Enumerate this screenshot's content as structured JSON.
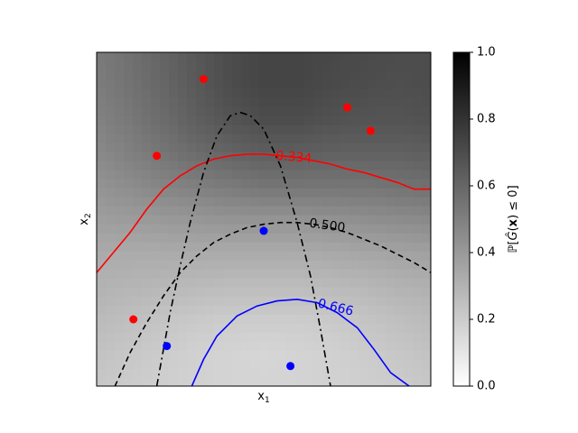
{
  "chart_data": {
    "type": "heatmap",
    "xlabel": "x1",
    "ylabel": "x2",
    "xlim": [
      0,
      1
    ],
    "ylim": [
      0,
      1
    ],
    "x_ticks_shown": false,
    "y_ticks_shown": false,
    "colormap": "gray_r",
    "colorbar": {
      "label": "ℙ[Ĝ(x) ≤ 0]",
      "range": [
        0,
        1
      ],
      "ticks": [
        "0.0",
        "0.2",
        "0.4",
        "0.6",
        "0.8",
        "1.0"
      ]
    },
    "probability_field": {
      "x": [
        0.0,
        0.1,
        0.2,
        0.3,
        0.4,
        0.5,
        0.6,
        0.7,
        0.8,
        0.9,
        1.0
      ],
      "y": [
        0.0,
        0.1,
        0.2,
        0.3,
        0.4,
        0.5,
        0.6,
        0.7,
        0.8,
        0.9,
        1.0
      ],
      "values_rows_by_y": [
        [
          0.22,
          0.2,
          0.19,
          0.18,
          0.17,
          0.17,
          0.17,
          0.18,
          0.19,
          0.2,
          0.22
        ],
        [
          0.24,
          0.22,
          0.2,
          0.18,
          0.17,
          0.16,
          0.17,
          0.18,
          0.2,
          0.22,
          0.24
        ],
        [
          0.27,
          0.25,
          0.23,
          0.21,
          0.2,
          0.2,
          0.2,
          0.21,
          0.23,
          0.25,
          0.27
        ],
        [
          0.3,
          0.29,
          0.28,
          0.27,
          0.26,
          0.26,
          0.26,
          0.27,
          0.28,
          0.3,
          0.31
        ],
        [
          0.33,
          0.33,
          0.33,
          0.33,
          0.33,
          0.33,
          0.33,
          0.34,
          0.35,
          0.36,
          0.37
        ],
        [
          0.38,
          0.39,
          0.4,
          0.41,
          0.42,
          0.42,
          0.42,
          0.43,
          0.44,
          0.45,
          0.46
        ],
        [
          0.42,
          0.45,
          0.48,
          0.5,
          0.52,
          0.54,
          0.54,
          0.54,
          0.54,
          0.55,
          0.56
        ],
        [
          0.46,
          0.5,
          0.54,
          0.58,
          0.61,
          0.63,
          0.63,
          0.62,
          0.62,
          0.62,
          0.63
        ],
        [
          0.49,
          0.53,
          0.58,
          0.63,
          0.67,
          0.7,
          0.7,
          0.68,
          0.67,
          0.67,
          0.68
        ],
        [
          0.51,
          0.55,
          0.6,
          0.65,
          0.7,
          0.73,
          0.73,
          0.71,
          0.7,
          0.69,
          0.7
        ],
        [
          0.52,
          0.56,
          0.61,
          0.66,
          0.7,
          0.73,
          0.73,
          0.72,
          0.71,
          0.7,
          0.7
        ]
      ]
    },
    "contours": [
      {
        "level_label": "0.334",
        "color": "#ff0000",
        "style": "solid",
        "label_at": [
          0.59,
          0.685
        ],
        "label_rotation": 5,
        "points": [
          [
            0.0,
            0.34
          ],
          [
            0.05,
            0.4
          ],
          [
            0.1,
            0.46
          ],
          [
            0.15,
            0.53
          ],
          [
            0.2,
            0.59
          ],
          [
            0.25,
            0.63
          ],
          [
            0.3,
            0.66
          ],
          [
            0.35,
            0.68
          ],
          [
            0.4,
            0.69
          ],
          [
            0.45,
            0.695
          ],
          [
            0.5,
            0.695
          ],
          [
            0.55,
            0.69
          ],
          [
            0.6,
            0.685
          ],
          [
            0.65,
            0.675
          ],
          [
            0.7,
            0.665
          ],
          [
            0.75,
            0.65
          ],
          [
            0.8,
            0.64
          ],
          [
            0.85,
            0.625
          ],
          [
            0.9,
            0.61
          ],
          [
            0.95,
            0.59
          ],
          [
            1.0,
            0.59
          ]
        ]
      },
      {
        "level_label": "0.500",
        "color": "#000000",
        "style": "dashed",
        "label_at": [
          0.69,
          0.48
        ],
        "label_rotation": 8,
        "points": [
          [
            0.055,
            0.0
          ],
          [
            0.1,
            0.1
          ],
          [
            0.15,
            0.19
          ],
          [
            0.2,
            0.27
          ],
          [
            0.25,
            0.34
          ],
          [
            0.3,
            0.39
          ],
          [
            0.35,
            0.43
          ],
          [
            0.4,
            0.455
          ],
          [
            0.45,
            0.475
          ],
          [
            0.5,
            0.485
          ],
          [
            0.55,
            0.49
          ],
          [
            0.6,
            0.49
          ],
          [
            0.65,
            0.485
          ],
          [
            0.7,
            0.475
          ],
          [
            0.75,
            0.46
          ],
          [
            0.8,
            0.44
          ],
          [
            0.85,
            0.42
          ],
          [
            0.9,
            0.395
          ],
          [
            0.95,
            0.37
          ],
          [
            1.0,
            0.34
          ]
        ]
      },
      {
        "level_label": "0.666",
        "color": "#0000ff",
        "style": "solid",
        "label_at": [
          0.715,
          0.235
        ],
        "label_rotation": 14,
        "points": [
          [
            0.285,
            0.0
          ],
          [
            0.32,
            0.08
          ],
          [
            0.36,
            0.15
          ],
          [
            0.42,
            0.21
          ],
          [
            0.48,
            0.24
          ],
          [
            0.54,
            0.255
          ],
          [
            0.6,
            0.26
          ],
          [
            0.66,
            0.25
          ],
          [
            0.72,
            0.22
          ],
          [
            0.78,
            0.175
          ],
          [
            0.83,
            0.11
          ],
          [
            0.88,
            0.04
          ],
          [
            0.935,
            0.0
          ]
        ]
      },
      {
        "level_label": "",
        "color": "#000000",
        "style": "dashdot",
        "points": [
          [
            0.18,
            0.0
          ],
          [
            0.2,
            0.11
          ],
          [
            0.22,
            0.22
          ],
          [
            0.25,
            0.36
          ],
          [
            0.28,
            0.49
          ],
          [
            0.32,
            0.64
          ],
          [
            0.36,
            0.75
          ],
          [
            0.4,
            0.81
          ],
          [
            0.43,
            0.82
          ],
          [
            0.46,
            0.81
          ],
          [
            0.5,
            0.77
          ],
          [
            0.55,
            0.66
          ],
          [
            0.6,
            0.49
          ],
          [
            0.64,
            0.33
          ],
          [
            0.67,
            0.17
          ],
          [
            0.7,
            0.0
          ]
        ]
      }
    ],
    "points": [
      {
        "x": 0.32,
        "y": 0.92,
        "class": "red"
      },
      {
        "x": 0.75,
        "y": 0.835,
        "class": "red"
      },
      {
        "x": 0.82,
        "y": 0.765,
        "class": "red"
      },
      {
        "x": 0.18,
        "y": 0.69,
        "class": "red"
      },
      {
        "x": 0.11,
        "y": 0.2,
        "class": "red"
      },
      {
        "x": 0.5,
        "y": 0.465,
        "class": "blue"
      },
      {
        "x": 0.21,
        "y": 0.12,
        "class": "blue"
      },
      {
        "x": 0.58,
        "y": 0.06,
        "class": "blue"
      }
    ],
    "colors": {
      "red": "#ff0000",
      "blue": "#0000ff",
      "axis": "#000000"
    }
  }
}
